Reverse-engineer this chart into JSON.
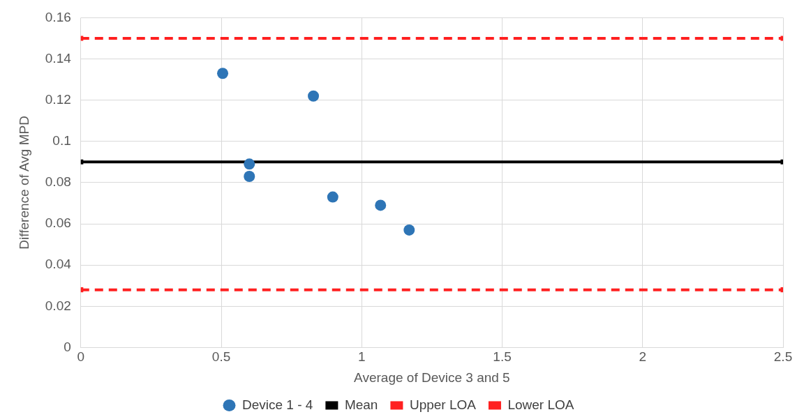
{
  "chart_data": {
    "type": "scatter",
    "xlabel": "Average of Device 3 and 5",
    "ylabel": "Difference of Avg MPD",
    "xlim": [
      0,
      2.5
    ],
    "xticks": [
      0,
      0.5,
      1,
      1.5,
      2,
      2.5
    ],
    "ylim": [
      0,
      0.16
    ],
    "yticks": [
      0,
      0.02,
      0.04,
      0.06,
      0.08,
      0.1,
      0.12,
      0.14,
      0.16
    ],
    "grid": true,
    "legend": "bottom",
    "series": [
      {
        "name": "Device 1 - 4",
        "type": "scatter",
        "color": "#2e75b6",
        "marker": "circle",
        "x": [
          0.505,
          0.828,
          0.6,
          0.6,
          0.897,
          1.067,
          1.169
        ],
        "values": [
          0.133,
          0.122,
          0.089,
          0.083,
          0.073,
          0.069,
          0.057
        ]
      },
      {
        "name": "Mean",
        "type": "line",
        "color": "#000000",
        "marker": "square",
        "line_style": "solid",
        "x": [
          0,
          2.5
        ],
        "values": [
          0.09,
          0.09
        ]
      },
      {
        "name": "Upper LOA",
        "type": "line",
        "color": "#ff2020",
        "marker": "square",
        "line_style": "dashed",
        "x": [
          0,
          2.5
        ],
        "values": [
          0.15,
          0.15
        ]
      },
      {
        "name": "Lower LOA",
        "type": "line",
        "color": "#ff2020",
        "marker": "square",
        "line_style": "dashed",
        "x": [
          0,
          2.5
        ],
        "values": [
          0.028,
          0.028
        ]
      }
    ]
  }
}
